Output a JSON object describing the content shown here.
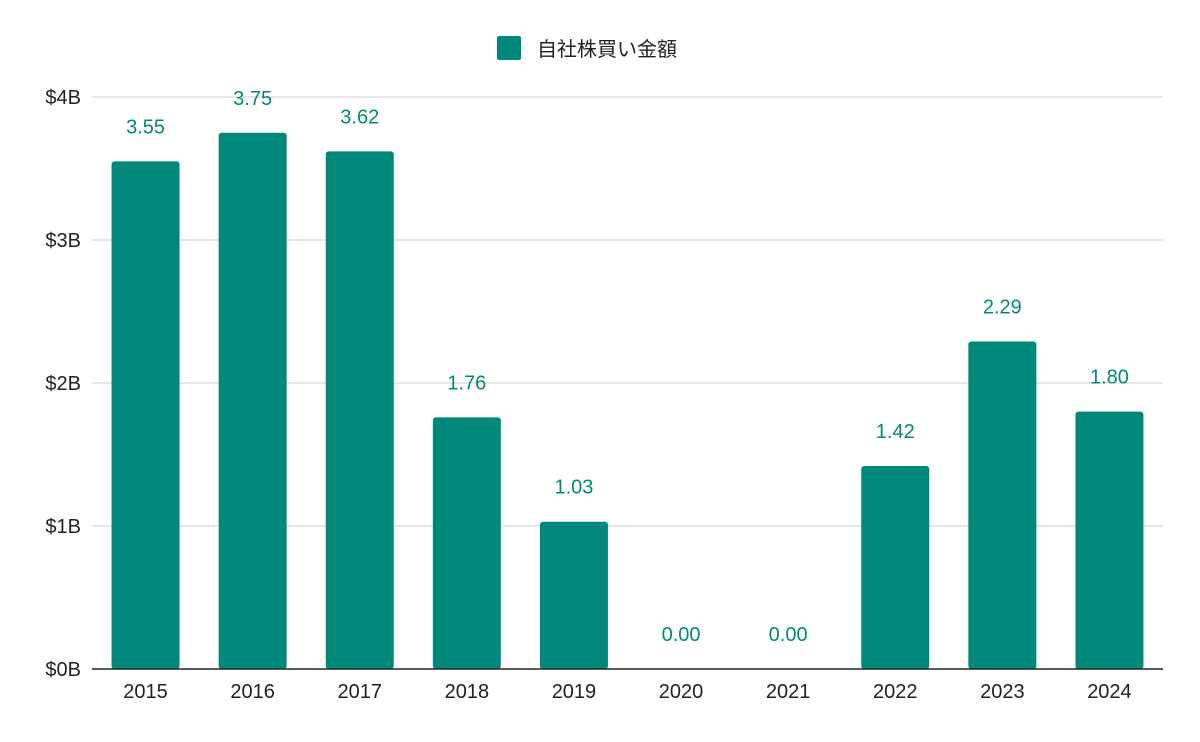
{
  "chart_data": {
    "type": "bar",
    "categories": [
      "2015",
      "2016",
      "2017",
      "2018",
      "2019",
      "2020",
      "2021",
      "2022",
      "2023",
      "2024"
    ],
    "series": [
      {
        "name": "自社株買い金額",
        "values": [
          3.55,
          3.75,
          3.62,
          1.76,
          1.03,
          0.0,
          0.0,
          1.42,
          2.29,
          1.8
        ],
        "data_labels": [
          "3.55",
          "3.75",
          "3.62",
          "1.76",
          "1.03",
          "0.00",
          "0.00",
          "1.42",
          "2.29",
          "1.80"
        ],
        "color": "#00897b"
      }
    ],
    "y_ticks": [
      "$0B",
      "$1B",
      "$2B",
      "$3B",
      "$4B"
    ],
    "ylim": [
      0,
      4
    ],
    "title": "",
    "xlabel": "",
    "ylabel": "",
    "grid": true,
    "legend_position": "top-center",
    "gridline_color": "#cccccc",
    "axis_color": "#222222"
  }
}
